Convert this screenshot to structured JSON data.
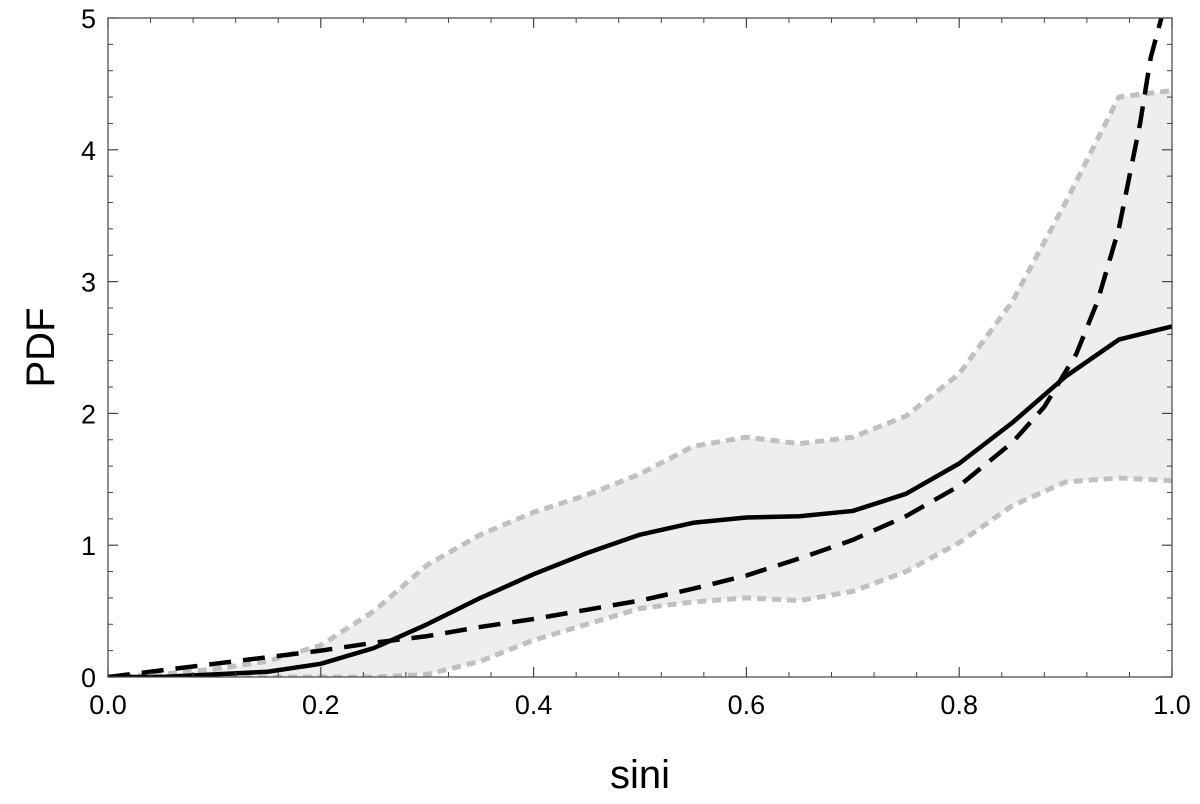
{
  "chart_data": {
    "type": "line",
    "title": "",
    "xlabel": "sini",
    "ylabel": "PDF",
    "xlim": [
      0.0,
      1.0
    ],
    "ylim": [
      0,
      5
    ],
    "grid": false,
    "x_ticks": [
      0.0,
      0.2,
      0.4,
      0.6,
      0.8,
      1.0
    ],
    "x_tick_labels": [
      "0.0",
      "0.2",
      "0.4",
      "0.6",
      "0.8",
      "1.0"
    ],
    "y_ticks": [
      0,
      1,
      2,
      3,
      4,
      5
    ],
    "y_tick_labels": [
      "0",
      "1",
      "2",
      "3",
      "4",
      "5"
    ],
    "colors": {
      "solid": "#000000",
      "dashed": "#000000",
      "band_fill": "#eeeeee",
      "band_edge": "#c0c0c0"
    },
    "series": [
      {
        "style": "solid",
        "x": [
          0.0,
          0.05,
          0.1,
          0.15,
          0.2,
          0.25,
          0.3,
          0.35,
          0.4,
          0.45,
          0.5,
          0.55,
          0.6,
          0.65,
          0.7,
          0.75,
          0.8,
          0.85,
          0.9,
          0.95,
          1.0
        ],
        "y": [
          0.0,
          0.0,
          0.02,
          0.04,
          0.1,
          0.22,
          0.4,
          0.6,
          0.78,
          0.94,
          1.08,
          1.17,
          1.21,
          1.22,
          1.26,
          1.39,
          1.62,
          1.93,
          2.28,
          2.56,
          2.66
        ]
      },
      {
        "style": "dashed",
        "x": [
          0.0,
          0.05,
          0.1,
          0.15,
          0.2,
          0.25,
          0.3,
          0.35,
          0.4,
          0.45,
          0.5,
          0.55,
          0.6,
          0.65,
          0.7,
          0.75,
          0.8,
          0.85,
          0.88,
          0.91,
          0.93,
          0.95,
          0.97,
          0.98,
          0.99
        ],
        "y": [
          0.0,
          0.05,
          0.1,
          0.15,
          0.2,
          0.26,
          0.31,
          0.38,
          0.44,
          0.51,
          0.58,
          0.67,
          0.77,
          0.9,
          1.04,
          1.22,
          1.45,
          1.78,
          2.05,
          2.45,
          2.85,
          3.4,
          4.2,
          4.7,
          5.0
        ]
      }
    ],
    "band": {
      "x": [
        0.0,
        0.05,
        0.1,
        0.15,
        0.2,
        0.25,
        0.3,
        0.35,
        0.4,
        0.45,
        0.5,
        0.55,
        0.6,
        0.65,
        0.7,
        0.75,
        0.8,
        0.85,
        0.9,
        0.95,
        1.0
      ],
      "lower": [
        0.0,
        0.0,
        0.0,
        0.0,
        0.0,
        0.0,
        0.02,
        0.12,
        0.28,
        0.4,
        0.52,
        0.57,
        0.6,
        0.58,
        0.65,
        0.8,
        1.02,
        1.3,
        1.48,
        1.51,
        1.49
      ],
      "upper": [
        0.0,
        0.02,
        0.06,
        0.12,
        0.24,
        0.5,
        0.85,
        1.08,
        1.25,
        1.38,
        1.54,
        1.75,
        1.82,
        1.77,
        1.82,
        1.98,
        2.3,
        2.85,
        3.6,
        4.4,
        4.45
      ]
    }
  }
}
